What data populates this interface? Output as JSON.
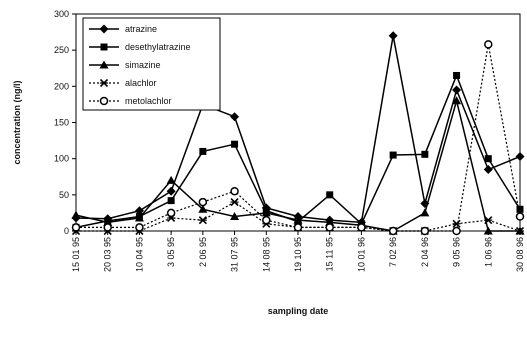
{
  "chart_data": {
    "type": "line",
    "title": "",
    "xlabel": "sampling date",
    "ylabel": "concentration (ng/l)",
    "ylim": [
      0,
      300
    ],
    "yticks": [
      "0",
      "50",
      "100",
      "150",
      "200",
      "250",
      "300"
    ],
    "grid": false,
    "legend_position": "top-left",
    "categories": [
      "15 01 95",
      "20 03 95",
      "10 04 95",
      "3 05 95",
      "2 06 95",
      "31 07 95",
      "14 08 95",
      "19 10 95",
      "15 11 95",
      "10 01 96",
      "7 02 96",
      "2 04 96",
      "9 05 96",
      "1 06 96",
      "30 08 96"
    ],
    "series": [
      {
        "name": "atrazine",
        "marker": "diamond",
        "dashed": false,
        "values": [
          18,
          17,
          28,
          55,
          175,
          158,
          32,
          20,
          15,
          12,
          270,
          38,
          195,
          85,
          103
        ]
      },
      {
        "name": "desethylatrazine",
        "marker": "square",
        "dashed": false,
        "values": [
          5,
          14,
          20,
          42,
          110,
          120,
          28,
          13,
          50,
          10,
          105,
          106,
          215,
          100,
          30
        ]
      },
      {
        "name": "simazine",
        "marker": "triangle",
        "dashed": false,
        "values": [
          22,
          12,
          18,
          70,
          30,
          20,
          25,
          15,
          12,
          8,
          0,
          25,
          180,
          0,
          0
        ]
      },
      {
        "name": "alachlor",
        "marker": "star",
        "dashed": true,
        "values": [
          0,
          0,
          0,
          18,
          15,
          40,
          10,
          5,
          5,
          5,
          0,
          0,
          10,
          15,
          0
        ]
      },
      {
        "name": "metolachlor",
        "marker": "circle",
        "dashed": true,
        "values": [
          5,
          5,
          5,
          25,
          40,
          55,
          15,
          5,
          5,
          5,
          0,
          0,
          0,
          258,
          20
        ]
      }
    ]
  }
}
